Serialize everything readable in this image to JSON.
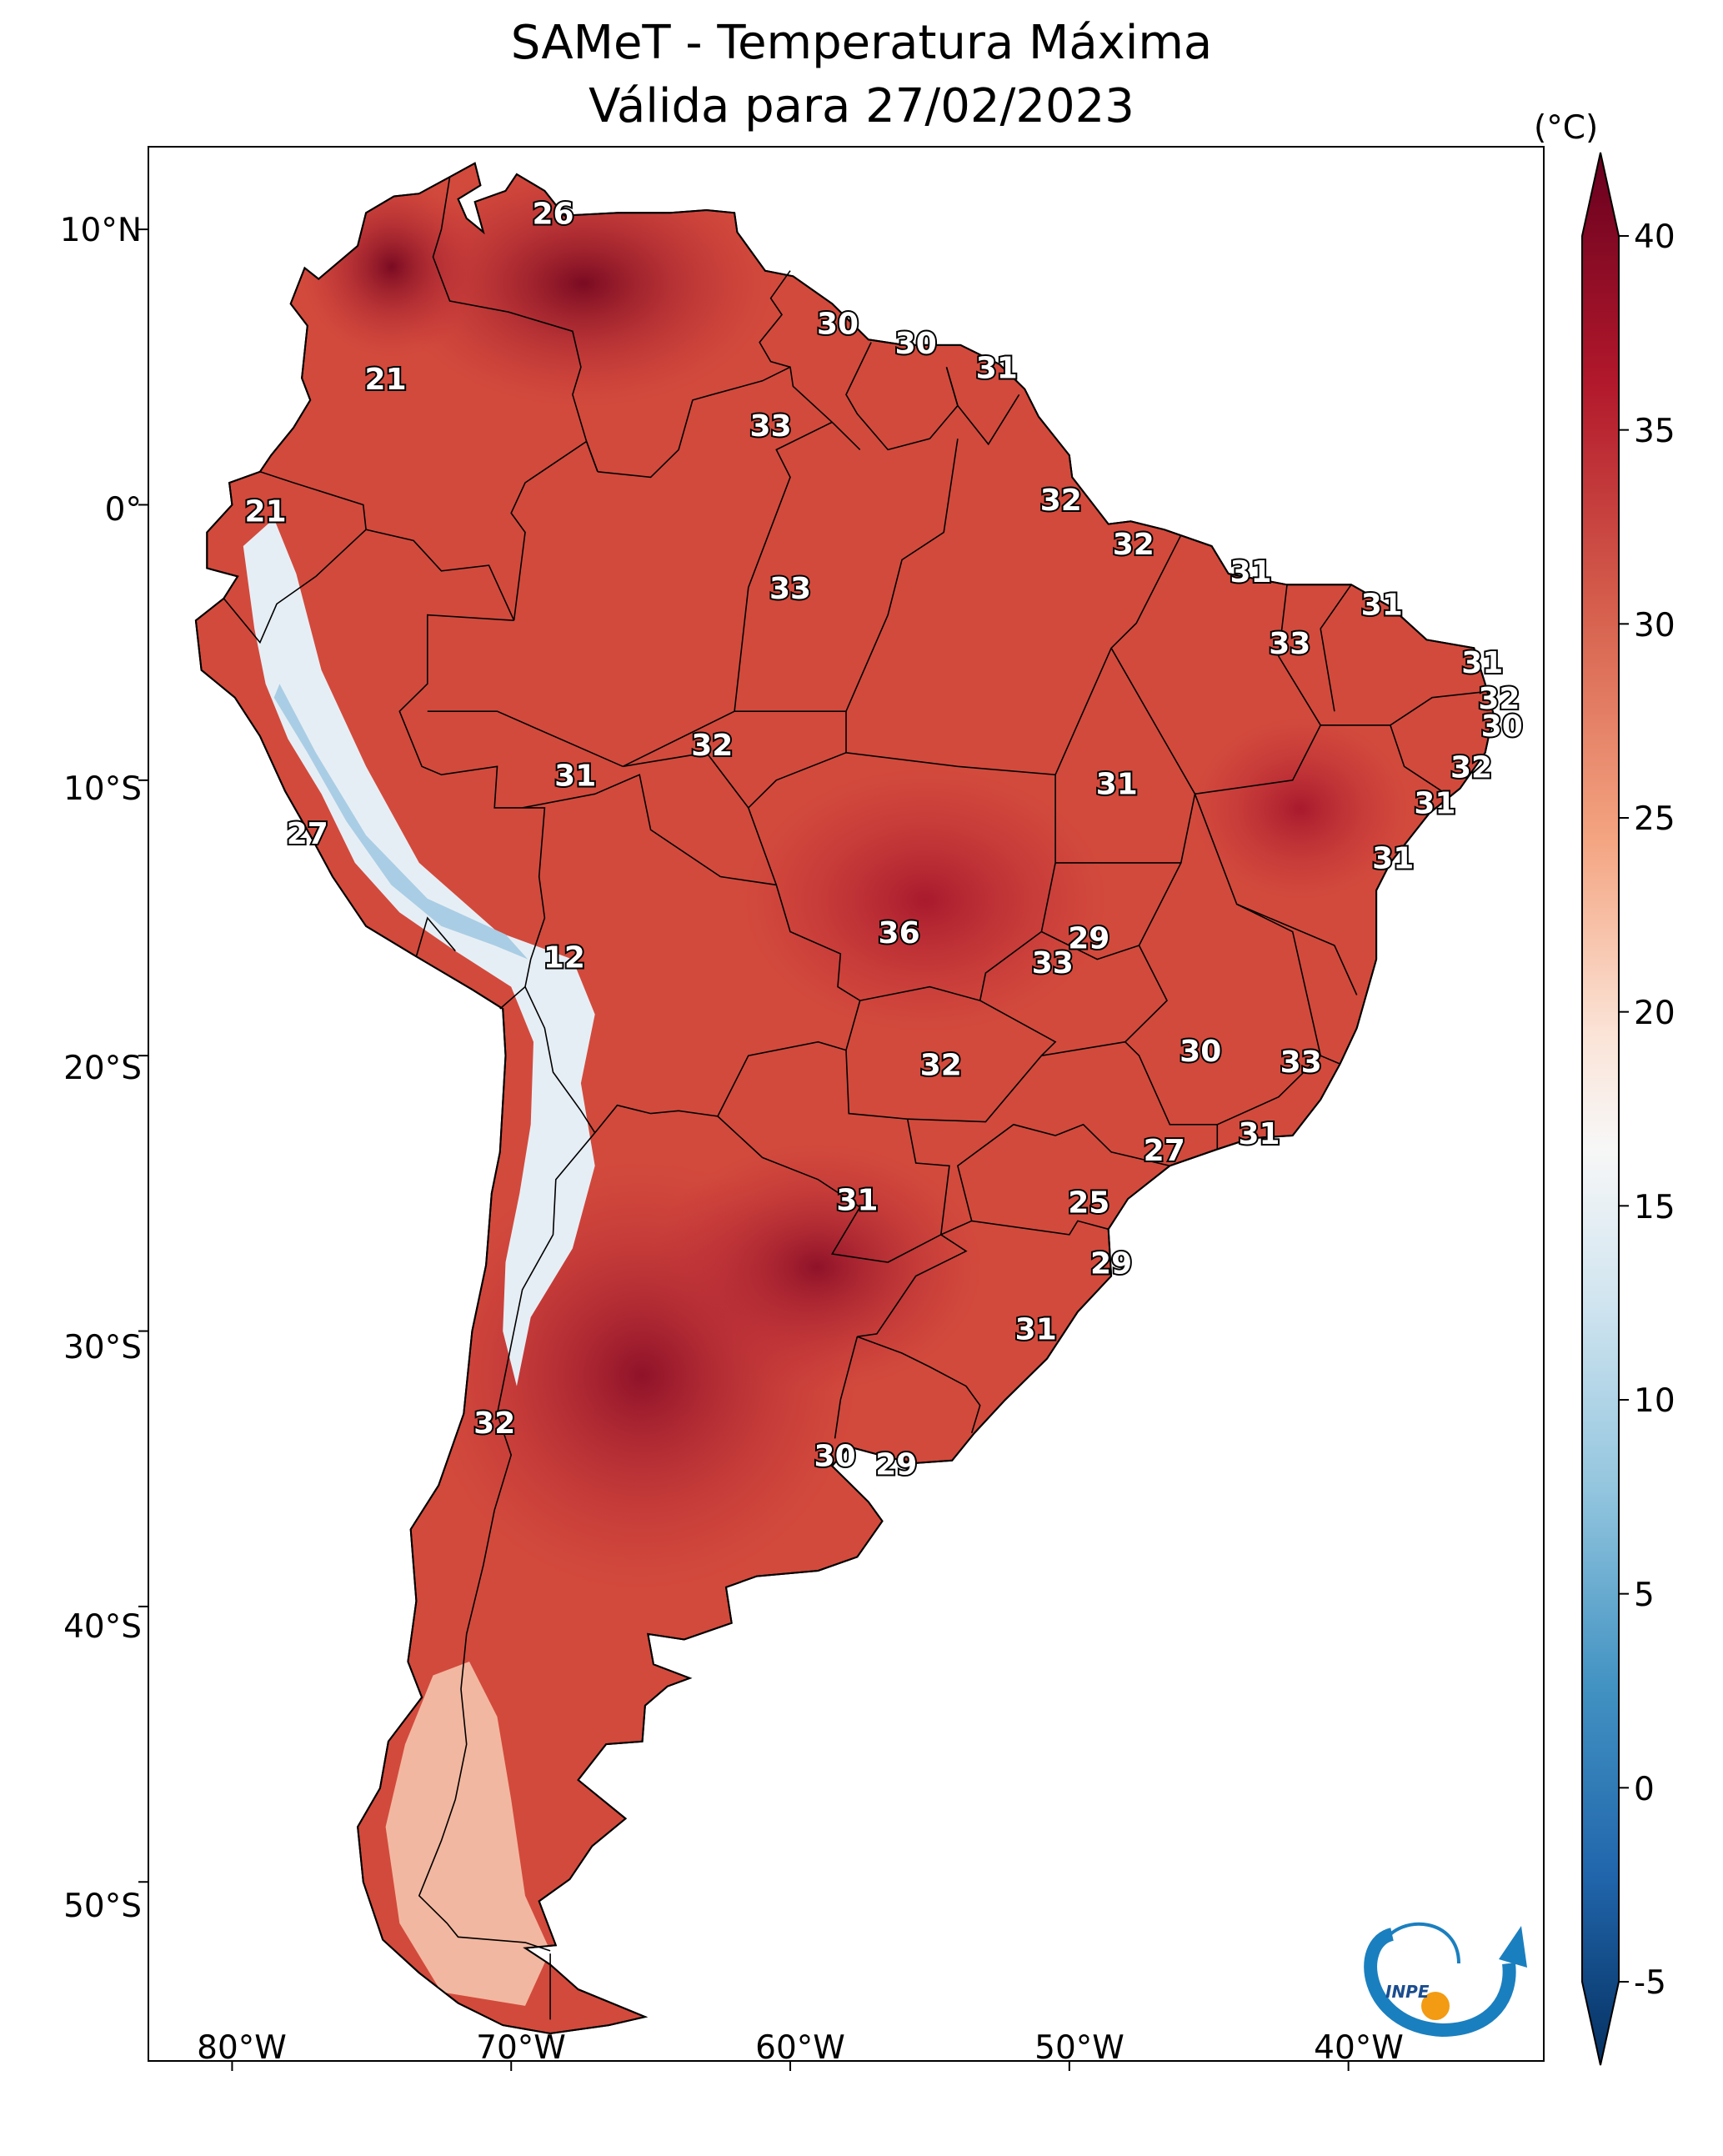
{
  "title": {
    "line1": "SAMeT - Temperatura Máxima",
    "line2": "Válida para 27/02/2023"
  },
  "axes": {
    "lat_ticks": [
      "10°N",
      "0°",
      "10°S",
      "20°S",
      "30°S",
      "40°S",
      "50°S"
    ],
    "lon_ticks": [
      "80°W",
      "70°W",
      "60°W",
      "50°W",
      "40°W"
    ]
  },
  "colorbar": {
    "unit": "(°C)",
    "ticks": [
      "40",
      "35",
      "30",
      "25",
      "20",
      "15",
      "10",
      "5",
      "0",
      "-5"
    ],
    "range_c": [
      -5,
      40
    ],
    "colors": {
      "max": "#67001f",
      "hot": "#b2182b",
      "warm": "#d6604d",
      "mild": "#f4a582",
      "neutral": "#f7f7f7",
      "cool": "#92c5de",
      "cold": "#4393c3",
      "min": "#053061"
    }
  },
  "map": {
    "projection": "PlateCarree",
    "extent": {
      "lon_min": -83,
      "lon_max": -33,
      "lat_min": -56.5,
      "lat_max": 13
    },
    "background_color": "#ffffff",
    "land_color": "#d24a3c",
    "border_color": "#000000"
  },
  "station_labels": [
    {
      "value": "26",
      "lon": -68.5,
      "lat": 10.5
    },
    {
      "value": "21",
      "lon": -74.5,
      "lat": 4.5
    },
    {
      "value": "21",
      "lon": -78.8,
      "lat": -0.3
    },
    {
      "value": "30",
      "lon": -58.3,
      "lat": 6.5
    },
    {
      "value": "30",
      "lon": -55.5,
      "lat": 5.8
    },
    {
      "value": "31",
      "lon": -52.6,
      "lat": 4.9
    },
    {
      "value": "33",
      "lon": -60.7,
      "lat": 2.8
    },
    {
      "value": "32",
      "lon": -50.3,
      "lat": 0.1
    },
    {
      "value": "32",
      "lon": -47.7,
      "lat": -1.5
    },
    {
      "value": "31",
      "lon": -43.5,
      "lat": -2.5
    },
    {
      "value": "31",
      "lon": -38.8,
      "lat": -3.7
    },
    {
      "value": "33",
      "lon": -60.0,
      "lat": -3.1
    },
    {
      "value": "33",
      "lon": -42.1,
      "lat": -5.1
    },
    {
      "value": "31",
      "lon": -35.2,
      "lat": -5.8
    },
    {
      "value": "32",
      "lon": -34.6,
      "lat": -7.1
    },
    {
      "value": "30",
      "lon": -34.5,
      "lat": -8.1
    },
    {
      "value": "32",
      "lon": -35.6,
      "lat": -9.6
    },
    {
      "value": "31",
      "lon": -36.9,
      "lat": -10.9
    },
    {
      "value": "31",
      "lon": -38.4,
      "lat": -12.9
    },
    {
      "value": "32",
      "lon": -62.8,
      "lat": -8.8
    },
    {
      "value": "31",
      "lon": -67.7,
      "lat": -9.9
    },
    {
      "value": "31",
      "lon": -48.3,
      "lat": -10.2
    },
    {
      "value": "27",
      "lon": -77.3,
      "lat": -12.0
    },
    {
      "value": "12",
      "lon": -68.1,
      "lat": -16.5
    },
    {
      "value": "36",
      "lon": -56.1,
      "lat": -15.6
    },
    {
      "value": "29",
      "lon": -49.3,
      "lat": -15.8
    },
    {
      "value": "33",
      "lon": -50.6,
      "lat": -16.7
    },
    {
      "value": "30",
      "lon": -45.3,
      "lat": -19.9
    },
    {
      "value": "33",
      "lon": -41.7,
      "lat": -20.3
    },
    {
      "value": "32",
      "lon": -54.6,
      "lat": -20.4
    },
    {
      "value": "31",
      "lon": -43.2,
      "lat": -22.9
    },
    {
      "value": "27",
      "lon": -46.6,
      "lat": -23.5
    },
    {
      "value": "31",
      "lon": -57.6,
      "lat": -25.3
    },
    {
      "value": "25",
      "lon": -49.3,
      "lat": -25.4
    },
    {
      "value": "29",
      "lon": -48.5,
      "lat": -27.6
    },
    {
      "value": "31",
      "lon": -51.2,
      "lat": -30.0
    },
    {
      "value": "32",
      "lon": -70.6,
      "lat": -33.4
    },
    {
      "value": "30",
      "lon": -58.4,
      "lat": -34.6
    },
    {
      "value": "29",
      "lon": -56.2,
      "lat": -34.9
    }
  ]
}
